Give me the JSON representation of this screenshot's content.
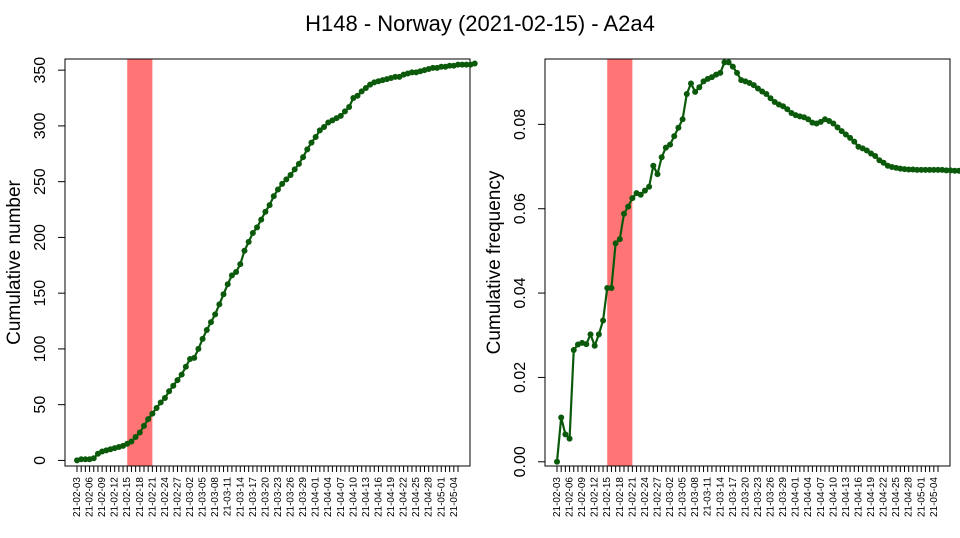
{
  "title": "H148 - Norway (2021-02-15) - A2a4",
  "colors": {
    "line": "#0b5a0b",
    "point": "#0b5a0b",
    "highlight": "#ff7474"
  },
  "chart_data": [
    {
      "type": "line",
      "ylabel": "Cumulative number",
      "ylim": [
        -5,
        360
      ],
      "yticks": [
        0,
        50,
        100,
        150,
        200,
        250,
        300,
        350
      ],
      "tick_labels": [
        "21-02-03",
        "21-02-06",
        "21-02-09",
        "21-02-12",
        "21-02-15",
        "21-02-18",
        "21-02-21",
        "21-02-24",
        "21-02-27",
        "21-03-02",
        "21-03-05",
        "21-03-08",
        "21-03-11",
        "21-03-14",
        "21-03-17",
        "21-03-20",
        "21-03-23",
        "21-03-26",
        "21-03-29",
        "21-04-01",
        "21-04-04",
        "21-04-07",
        "21-04-10",
        "21-04-13",
        "21-04-16",
        "21-04-19",
        "21-04-22",
        "21-04-25",
        "21-04-28",
        "21-05-01",
        "21-05-04"
      ],
      "highlight": {
        "from": "2021-02-15",
        "to": "2021-02-21"
      },
      "x_start": "2021-02-03",
      "values": [
        0,
        1,
        1,
        1,
        2,
        6,
        8,
        9,
        10,
        11,
        12,
        13,
        15,
        17,
        21,
        25,
        31,
        37,
        42,
        47,
        52,
        56,
        62,
        67,
        72,
        77,
        84,
        91,
        92,
        100,
        109,
        117,
        124,
        131,
        140,
        149,
        158,
        166,
        169,
        176,
        188,
        196,
        204,
        209,
        216,
        223,
        229,
        237,
        243,
        248,
        252,
        256,
        261,
        266,
        272,
        279,
        285,
        290,
        296,
        299,
        303,
        305,
        307,
        309,
        313,
        317,
        325,
        327,
        331,
        334,
        337,
        339,
        340,
        341,
        342,
        343,
        344,
        344,
        346,
        347,
        348,
        348,
        349,
        350,
        351,
        352,
        352,
        353,
        353,
        354,
        354,
        355,
        355,
        355,
        355,
        356
      ]
    },
    {
      "type": "line",
      "ylabel": "Cumulative frequency",
      "ylim": [
        -0.001,
        0.0955
      ],
      "yticks": [
        0.0,
        0.02,
        0.04,
        0.06,
        0.08
      ],
      "ytick_labels": [
        "0.00",
        "0.02",
        "0.04",
        "0.06",
        "0.08"
      ],
      "tick_labels": [
        "21-02-03",
        "21-02-06",
        "21-02-09",
        "21-02-12",
        "21-02-15",
        "21-02-18",
        "21-02-21",
        "21-02-24",
        "21-02-27",
        "21-03-02",
        "21-03-05",
        "21-03-08",
        "21-03-11",
        "21-03-14",
        "21-03-17",
        "21-03-20",
        "21-03-23",
        "21-03-26",
        "21-03-29",
        "21-04-01",
        "21-04-04",
        "21-04-07",
        "21-04-10",
        "21-04-13",
        "21-04-16",
        "21-04-19",
        "21-04-22",
        "21-04-25",
        "21-04-28",
        "21-05-01",
        "21-05-04"
      ],
      "highlight": {
        "from": "2021-02-15",
        "to": "2021-02-21"
      },
      "x_start": "2021-02-03",
      "values": [
        0,
        0.0105,
        0.0065,
        0.0055,
        0.0265,
        0.0278,
        0.0282,
        0.0279,
        0.0302,
        0.0275,
        0.0302,
        0.0335,
        0.0412,
        0.0412,
        0.0518,
        0.0528,
        0.0588,
        0.0605,
        0.0625,
        0.0637,
        0.0633,
        0.0643,
        0.0652,
        0.0702,
        0.0682,
        0.0722,
        0.0745,
        0.0752,
        0.0772,
        0.0792,
        0.0812,
        0.0872,
        0.0897,
        0.0877,
        0.0888,
        0.0902,
        0.0908,
        0.0912,
        0.0918,
        0.0922,
        0.0947,
        0.0947,
        0.0937,
        0.0922,
        0.0905,
        0.0902,
        0.0898,
        0.0893,
        0.0885,
        0.0878,
        0.0872,
        0.0862,
        0.0853,
        0.0847,
        0.0843,
        0.0836,
        0.0827,
        0.0822,
        0.0819,
        0.0817,
        0.0812,
        0.0804,
        0.0802,
        0.0806,
        0.0812,
        0.0808,
        0.0802,
        0.0793,
        0.0784,
        0.0776,
        0.0768,
        0.0759,
        0.0747,
        0.0743,
        0.0738,
        0.0731,
        0.0725,
        0.0715,
        0.0709,
        0.0702,
        0.0699,
        0.0697,
        0.0695,
        0.0694,
        0.0693,
        0.0693,
        0.0692,
        0.0692,
        0.0692,
        0.0692,
        0.0692,
        0.0692,
        0.0692,
        0.0691,
        0.0691,
        0.069,
        0.069,
        0.069,
        0.069,
        0.069,
        0.0691
      ]
    }
  ]
}
